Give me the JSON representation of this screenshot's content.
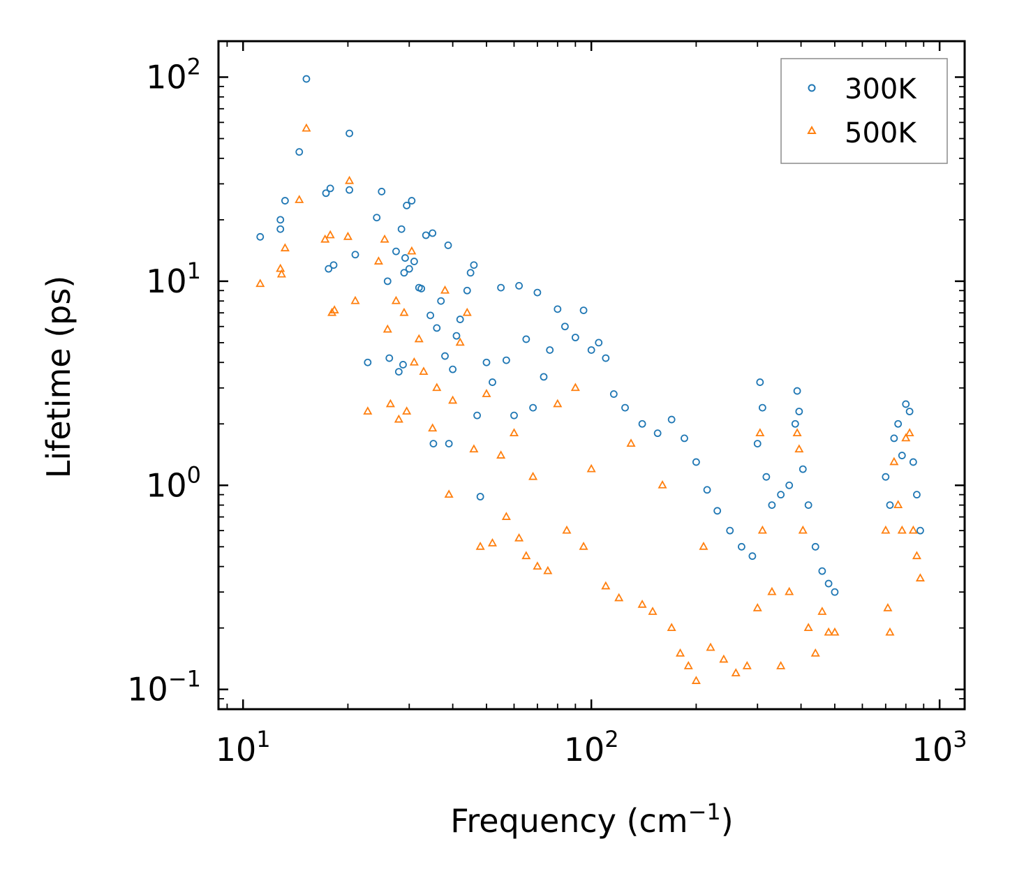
{
  "chart_data": {
    "type": "scatter",
    "xlabel": "Frequency (cm",
    "xlabel_sup": "−1",
    "xlabel_suffix": ")",
    "ylabel": "Lifetime (ps)",
    "x_scale": "log",
    "y_scale": "log",
    "xlim": [
      8.5,
      1180
    ],
    "ylim": [
      0.08,
      150
    ],
    "x_ticks": [
      {
        "value": 10,
        "base": "10",
        "exp": "1"
      },
      {
        "value": 100,
        "base": "10",
        "exp": "2"
      },
      {
        "value": 1000,
        "base": "10",
        "exp": "3"
      }
    ],
    "y_ticks": [
      {
        "value": 0.1,
        "base": "10",
        "exp": "−1"
      },
      {
        "value": 1,
        "base": "10",
        "exp": "0"
      },
      {
        "value": 10,
        "base": "10",
        "exp": "1"
      },
      {
        "value": 100,
        "base": "10",
        "exp": "2"
      }
    ],
    "grid": false,
    "legend_position": "top-right",
    "series": [
      {
        "name": "300K",
        "marker": "circle",
        "color": "#1f77b4",
        "points": [
          [
            11.2,
            16.5
          ],
          [
            12.8,
            20.0
          ],
          [
            12.8,
            18.0
          ],
          [
            13.2,
            24.8
          ],
          [
            14.5,
            43.0
          ],
          [
            15.2,
            98.0
          ],
          [
            17.3,
            27.0
          ],
          [
            17.8,
            28.5
          ],
          [
            17.6,
            11.5
          ],
          [
            18.2,
            12.0
          ],
          [
            20.2,
            53.0
          ],
          [
            20.2,
            28.0
          ],
          [
            21.0,
            13.5
          ],
          [
            22.8,
            4.0
          ],
          [
            24.2,
            20.5
          ],
          [
            25.0,
            27.5
          ],
          [
            26.0,
            10.0
          ],
          [
            26.3,
            4.2
          ],
          [
            27.5,
            14.0
          ],
          [
            28.0,
            3.6
          ],
          [
            28.5,
            18.0
          ],
          [
            28.8,
            3.9
          ],
          [
            29.0,
            11.0
          ],
          [
            29.2,
            13.0
          ],
          [
            29.5,
            23.5
          ],
          [
            30.0,
            11.5
          ],
          [
            30.5,
            24.8
          ],
          [
            31.0,
            12.5
          ],
          [
            32.0,
            9.3
          ],
          [
            32.5,
            9.2
          ],
          [
            33.5,
            16.8
          ],
          [
            34.5,
            6.8
          ],
          [
            35.0,
            17.2
          ],
          [
            35.2,
            1.6
          ],
          [
            36.0,
            5.9
          ],
          [
            37.0,
            8.0
          ],
          [
            38.0,
            4.3
          ],
          [
            38.8,
            15.0
          ],
          [
            39.0,
            1.6
          ],
          [
            40.0,
            3.7
          ],
          [
            41.0,
            5.4
          ],
          [
            42.0,
            6.5
          ],
          [
            44.0,
            9.0
          ],
          [
            45.0,
            11.0
          ],
          [
            46.0,
            12.0
          ],
          [
            47.0,
            2.2
          ],
          [
            48.0,
            0.88
          ],
          [
            50.0,
            4.0
          ],
          [
            52.0,
            3.2
          ],
          [
            55.0,
            9.3
          ],
          [
            57.0,
            4.1
          ],
          [
            60.0,
            2.2
          ],
          [
            62.0,
            9.5
          ],
          [
            65.0,
            5.2
          ],
          [
            68.0,
            2.4
          ],
          [
            70.0,
            8.8
          ],
          [
            73.0,
            3.4
          ],
          [
            76.0,
            4.6
          ],
          [
            80.0,
            7.3
          ],
          [
            84.0,
            6.0
          ],
          [
            90.0,
            5.3
          ],
          [
            95.0,
            7.2
          ],
          [
            100.0,
            4.6
          ],
          [
            105.0,
            5.0
          ],
          [
            110.0,
            4.2
          ],
          [
            116.0,
            2.8
          ],
          [
            125.0,
            2.4
          ],
          [
            140.0,
            2.0
          ],
          [
            155.0,
            1.8
          ],
          [
            170.0,
            2.1
          ],
          [
            185.0,
            1.7
          ],
          [
            200.0,
            1.3
          ],
          [
            215.0,
            0.95
          ],
          [
            230.0,
            0.75
          ],
          [
            250.0,
            0.6
          ],
          [
            270.0,
            0.5
          ],
          [
            290.0,
            0.45
          ],
          [
            300.0,
            1.6
          ],
          [
            305.0,
            3.2
          ],
          [
            310.0,
            2.4
          ],
          [
            318.0,
            1.1
          ],
          [
            330.0,
            0.8
          ],
          [
            350.0,
            0.9
          ],
          [
            370.0,
            1.0
          ],
          [
            385.0,
            2.0
          ],
          [
            390.0,
            2.9
          ],
          [
            395.0,
            2.3
          ],
          [
            405.0,
            1.2
          ],
          [
            420.0,
            0.8
          ],
          [
            440.0,
            0.5
          ],
          [
            460.0,
            0.38
          ],
          [
            480.0,
            0.33
          ],
          [
            500.0,
            0.3
          ],
          [
            700.0,
            1.1
          ],
          [
            720.0,
            0.8
          ],
          [
            740.0,
            1.7
          ],
          [
            760.0,
            2.0
          ],
          [
            780.0,
            1.4
          ],
          [
            800.0,
            2.5
          ],
          [
            820.0,
            2.3
          ],
          [
            840.0,
            1.3
          ],
          [
            860.0,
            0.9
          ],
          [
            880.0,
            0.6
          ]
        ]
      },
      {
        "name": "500K",
        "marker": "triangle",
        "color": "#ff7f0e",
        "points": [
          [
            11.2,
            9.7
          ],
          [
            12.8,
            11.5
          ],
          [
            12.9,
            10.8
          ],
          [
            13.2,
            14.5
          ],
          [
            14.5,
            25.0
          ],
          [
            15.2,
            56.0
          ],
          [
            17.2,
            16.0
          ],
          [
            17.8,
            16.8
          ],
          [
            18.0,
            7.0
          ],
          [
            18.3,
            7.2
          ],
          [
            20.2,
            31.0
          ],
          [
            20.0,
            16.5
          ],
          [
            21.0,
            8.0
          ],
          [
            22.8,
            2.3
          ],
          [
            24.5,
            12.5
          ],
          [
            25.5,
            16.0
          ],
          [
            26.0,
            5.8
          ],
          [
            26.5,
            2.5
          ],
          [
            27.5,
            8.0
          ],
          [
            28.0,
            2.1
          ],
          [
            29.0,
            7.0
          ],
          [
            29.5,
            2.3
          ],
          [
            30.5,
            14.0
          ],
          [
            31.0,
            4.0
          ],
          [
            32.0,
            5.2
          ],
          [
            33.0,
            3.6
          ],
          [
            35.0,
            1.9
          ],
          [
            36.0,
            3.0
          ],
          [
            38.0,
            9.0
          ],
          [
            39.0,
            0.9
          ],
          [
            40.0,
            2.6
          ],
          [
            42.0,
            5.0
          ],
          [
            44.0,
            7.0
          ],
          [
            46.0,
            1.5
          ],
          [
            48.0,
            0.5
          ],
          [
            50.0,
            2.8
          ],
          [
            52.0,
            0.52
          ],
          [
            55.0,
            1.4
          ],
          [
            57.0,
            0.7
          ],
          [
            60.0,
            1.8
          ],
          [
            62.0,
            0.55
          ],
          [
            65.0,
            0.45
          ],
          [
            68.0,
            1.1
          ],
          [
            70.0,
            0.4
          ],
          [
            75.0,
            0.38
          ],
          [
            80.0,
            2.5
          ],
          [
            85.0,
            0.6
          ],
          [
            90.0,
            3.0
          ],
          [
            95.0,
            0.5
          ],
          [
            100.0,
            1.2
          ],
          [
            110.0,
            0.32
          ],
          [
            120.0,
            0.28
          ],
          [
            130.0,
            1.6
          ],
          [
            140.0,
            0.26
          ],
          [
            150.0,
            0.24
          ],
          [
            160.0,
            1.0
          ],
          [
            170.0,
            0.2
          ],
          [
            180.0,
            0.15
          ],
          [
            190.0,
            0.13
          ],
          [
            200.0,
            0.11
          ],
          [
            210.0,
            0.5
          ],
          [
            220.0,
            0.16
          ],
          [
            240.0,
            0.14
          ],
          [
            260.0,
            0.12
          ],
          [
            280.0,
            0.13
          ],
          [
            300.0,
            0.25
          ],
          [
            305.0,
            1.8
          ],
          [
            310.0,
            0.6
          ],
          [
            330.0,
            0.3
          ],
          [
            350.0,
            0.13
          ],
          [
            370.0,
            0.3
          ],
          [
            390.0,
            1.8
          ],
          [
            395.0,
            1.5
          ],
          [
            405.0,
            0.6
          ],
          [
            420.0,
            0.2
          ],
          [
            440.0,
            0.15
          ],
          [
            460.0,
            0.24
          ],
          [
            480.0,
            0.19
          ],
          [
            500.0,
            0.19
          ],
          [
            700.0,
            0.6
          ],
          [
            710.0,
            0.25
          ],
          [
            720.0,
            0.19
          ],
          [
            740.0,
            1.3
          ],
          [
            760.0,
            0.8
          ],
          [
            780.0,
            0.6
          ],
          [
            800.0,
            1.7
          ],
          [
            820.0,
            1.8
          ],
          [
            840.0,
            0.6
          ],
          [
            860.0,
            0.45
          ],
          [
            880.0,
            0.35
          ]
        ]
      }
    ]
  }
}
